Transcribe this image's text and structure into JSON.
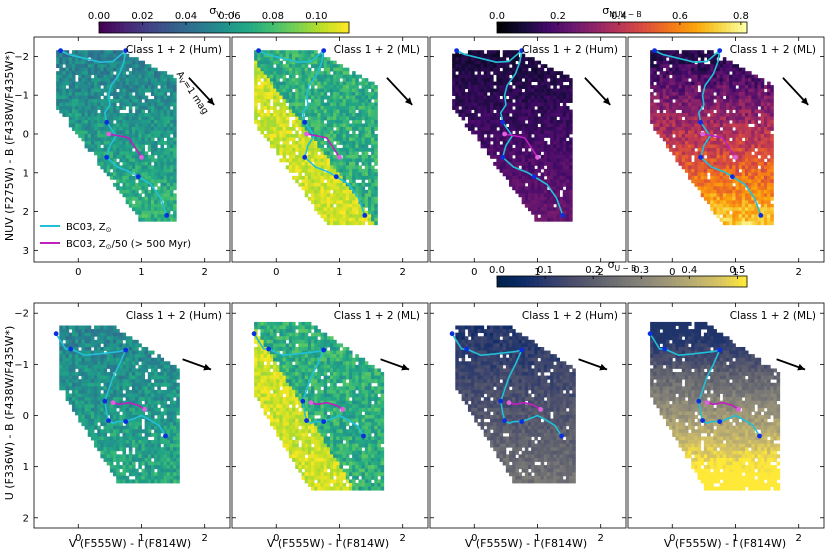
{
  "colorbars": [
    {
      "id": "vi",
      "label": "σ",
      "sub": "V − I",
      "ticks": [
        "0.00",
        "0.02",
        "0.04",
        "0.06",
        "0.08",
        "0.10"
      ],
      "range": [
        0,
        0.115
      ],
      "cmap": "viridis"
    },
    {
      "id": "nuv",
      "label": "σ",
      "sub": "NUV − B",
      "ticks": [
        "0.0",
        "0.2",
        "0.4",
        "0.6",
        "0.8"
      ],
      "range": [
        0,
        0.82
      ],
      "cmap": "inferno"
    },
    {
      "id": "ub",
      "label": "σ",
      "sub": "U − B",
      "ticks": [
        "0.0",
        "0.1",
        "0.2",
        "0.3",
        "0.4",
        "0.5"
      ],
      "range": [
        0,
        0.52
      ],
      "cmap": "cividis"
    }
  ],
  "panel_titles": [
    "Class 1 + 2 (Hum)",
    "Class 1 + 2 (ML)",
    "Class 1 + 2 (Hum)",
    "Class 1 + 2 (ML)",
    "Class 1 + 2 (Hum)",
    "Class 1 + 2 (ML)",
    "Class 1 + 2 (Hum)",
    "Class 1 + 2 (ML)"
  ],
  "top_ylabel": "NUV (F275W) - B (F438W/F435W*)",
  "bottom_ylabel": "U (F336W) - B (F438W/F435W*)",
  "xlabel": "V (F555W) - I (F814W)",
  "arrow_label": "A",
  "arrow_label_sub": "V",
  "arrow_label_rest": "=1 mag",
  "legend": [
    {
      "label": "BC03, Z",
      "suffix": "",
      "color": "#22c0d8"
    },
    {
      "label": "BC03, Z",
      "suffix": "/50 (> 500 Myr)",
      "color": "#c020c0"
    }
  ],
  "colors": {
    "solar_track": "#22c0d8",
    "lowz_track": "#c020c0",
    "track_marker": "#0a2ee0",
    "lowz_marker": "#e060e0"
  },
  "chart_data": [
    {
      "type": "heatmap",
      "row": "top",
      "title": "Class 1 + 2 (Hum)",
      "colorbar": "σ_V−I",
      "xlim": [
        -0.7,
        2.4
      ],
      "ylim": [
        3.3,
        -2.5
      ],
      "xticks": [
        0,
        1,
        2
      ],
      "yticks": [
        -2,
        -1,
        0,
        1,
        2,
        3
      ],
      "cell_value_range": [
        0.04,
        0.08
      ],
      "legend": [
        "BC03, Z⊙",
        "BC03, Z⊙/50 (> 500 Myr)"
      ],
      "annotation": "AV=1 mag"
    },
    {
      "type": "heatmap",
      "row": "top",
      "title": "Class 1 + 2 (ML)",
      "colorbar": "σ_V−I",
      "xlim": [
        -0.7,
        2.4
      ],
      "ylim": [
        3.3,
        -2.5
      ],
      "xticks": [
        0,
        1,
        2
      ],
      "yticks": [
        -2,
        -1,
        0,
        1,
        2,
        3
      ],
      "cell_value_range": [
        0.05,
        0.11
      ]
    },
    {
      "type": "heatmap",
      "row": "top",
      "title": "Class 1 + 2 (Hum)",
      "colorbar": "σ_NUV−B",
      "xlim": [
        -0.7,
        2.4
      ],
      "ylim": [
        3.3,
        -2.5
      ],
      "xticks": [
        0,
        1,
        2
      ],
      "yticks": [
        -2,
        -1,
        0,
        1,
        2,
        3
      ],
      "cell_value_range": [
        0.05,
        0.6
      ]
    },
    {
      "type": "heatmap",
      "row": "top",
      "title": "Class 1 + 2 (ML)",
      "colorbar": "σ_NUV−B",
      "xlim": [
        -0.7,
        2.4
      ],
      "ylim": [
        3.3,
        -2.5
      ],
      "xticks": [
        0,
        1,
        2
      ],
      "yticks": [
        -2,
        -1,
        0,
        1,
        2,
        3
      ],
      "cell_value_range": [
        0.1,
        0.8
      ]
    },
    {
      "type": "heatmap",
      "row": "bottom",
      "title": "Class 1 + 2 (Hum)",
      "colorbar": "σ_V−I",
      "xlim": [
        -0.7,
        2.4
      ],
      "ylim": [
        2.2,
        -2.2
      ],
      "xticks": [
        0,
        1,
        2
      ],
      "yticks": [
        -2,
        -1,
        0,
        1,
        2
      ],
      "cell_value_range": [
        0.04,
        0.08
      ]
    },
    {
      "type": "heatmap",
      "row": "bottom",
      "title": "Class 1 + 2 (ML)",
      "colorbar": "σ_V−I",
      "xlim": [
        -0.7,
        2.4
      ],
      "ylim": [
        2.2,
        -2.2
      ],
      "xticks": [
        0,
        1,
        2
      ],
      "yticks": [
        -2,
        -1,
        0,
        1,
        2
      ],
      "cell_value_range": [
        0.05,
        0.11
      ]
    },
    {
      "type": "heatmap",
      "row": "bottom",
      "title": "Class 1 + 2 (Hum)",
      "colorbar": "σ_U−B",
      "xlim": [
        -0.7,
        2.4
      ],
      "ylim": [
        2.2,
        -2.2
      ],
      "xticks": [
        0,
        1,
        2
      ],
      "yticks": [
        -2,
        -1,
        0,
        1,
        2
      ],
      "cell_value_range": [
        0.05,
        0.3
      ]
    },
    {
      "type": "heatmap",
      "row": "bottom",
      "title": "Class 1 + 2 (ML)",
      "colorbar": "σ_U−B",
      "xlim": [
        -0.7,
        2.4
      ],
      "ylim": [
        2.2,
        -2.2
      ],
      "xticks": [
        0,
        1,
        2
      ],
      "yticks": [
        -2,
        -1,
        0,
        1,
        2
      ],
      "cell_value_range": [
        0.1,
        0.52
      ]
    }
  ],
  "tracks": {
    "top_solar": [
      [
        -0.28,
        -2.15
      ],
      [
        -0.15,
        -2.05
      ],
      [
        0.1,
        -1.95
      ],
      [
        0.35,
        -1.85
      ],
      [
        0.55,
        -1.87
      ],
      [
        0.75,
        -2.15
      ],
      [
        0.72,
        -1.85
      ],
      [
        0.65,
        -1.55
      ],
      [
        0.52,
        -1.25
      ],
      [
        0.48,
        -1.0
      ],
      [
        0.5,
        -0.75
      ],
      [
        0.42,
        -0.55
      ],
      [
        0.45,
        -0.3
      ],
      [
        0.6,
        0.05
      ],
      [
        0.5,
        0.3
      ],
      [
        0.45,
        0.6
      ],
      [
        0.62,
        0.85
      ],
      [
        0.85,
        1.0
      ],
      [
        0.95,
        1.1
      ],
      [
        1.15,
        1.3
      ],
      [
        1.3,
        1.65
      ],
      [
        1.4,
        2.1
      ]
    ],
    "top_solar_markers": [
      [
        -0.28,
        -2.15
      ],
      [
        0.75,
        -2.15
      ],
      [
        0.45,
        -0.3
      ],
      [
        0.45,
        0.6
      ],
      [
        0.95,
        1.1
      ],
      [
        1.4,
        2.1
      ]
    ],
    "top_lowz": [
      [
        0.48,
        0.0
      ],
      [
        0.65,
        0.05
      ],
      [
        0.8,
        0.1
      ],
      [
        0.9,
        0.35
      ],
      [
        1.0,
        0.6
      ]
    ],
    "top_lowz_markers": [
      [
        0.48,
        0.0
      ],
      [
        1.0,
        0.6
      ]
    ],
    "bot_solar": [
      [
        -0.35,
        -1.6
      ],
      [
        -0.2,
        -1.3
      ],
      [
        -0.12,
        -1.3
      ],
      [
        0.1,
        -1.18
      ],
      [
        0.3,
        -1.2
      ],
      [
        0.65,
        -1.25
      ],
      [
        0.75,
        -1.28
      ],
      [
        0.65,
        -1.0
      ],
      [
        0.55,
        -0.75
      ],
      [
        0.48,
        -0.5
      ],
      [
        0.42,
        -0.28
      ],
      [
        0.45,
        -0.05
      ],
      [
        0.48,
        0.1
      ],
      [
        0.55,
        0.15
      ],
      [
        0.62,
        0.12
      ],
      [
        0.75,
        0.12
      ],
      [
        0.9,
        0.05
      ],
      [
        1.0,
        0.0
      ],
      [
        1.15,
        0.1
      ],
      [
        1.28,
        0.2
      ],
      [
        1.38,
        0.4
      ]
    ],
    "bot_solar_markers": [
      [
        -0.35,
        -1.6
      ],
      [
        -0.12,
        -1.3
      ],
      [
        0.75,
        -1.28
      ],
      [
        0.42,
        -0.28
      ],
      [
        0.48,
        0.1
      ],
      [
        0.75,
        0.12
      ],
      [
        1.38,
        0.4
      ]
    ],
    "bot_lowz": [
      [
        0.55,
        -0.25
      ],
      [
        0.65,
        -0.22
      ],
      [
        0.8,
        -0.25
      ],
      [
        0.95,
        -0.2
      ],
      [
        1.05,
        -0.12
      ]
    ],
    "bot_lowz_markers": [
      [
        0.55,
        -0.25
      ],
      [
        1.05,
        -0.12
      ]
    ],
    "arrow_top": [
      [
        1.75,
        -1.45
      ],
      [
        2.15,
        -0.75
      ]
    ],
    "arrow_bot": [
      [
        1.65,
        -1.1
      ],
      [
        2.1,
        -0.9
      ]
    ]
  }
}
